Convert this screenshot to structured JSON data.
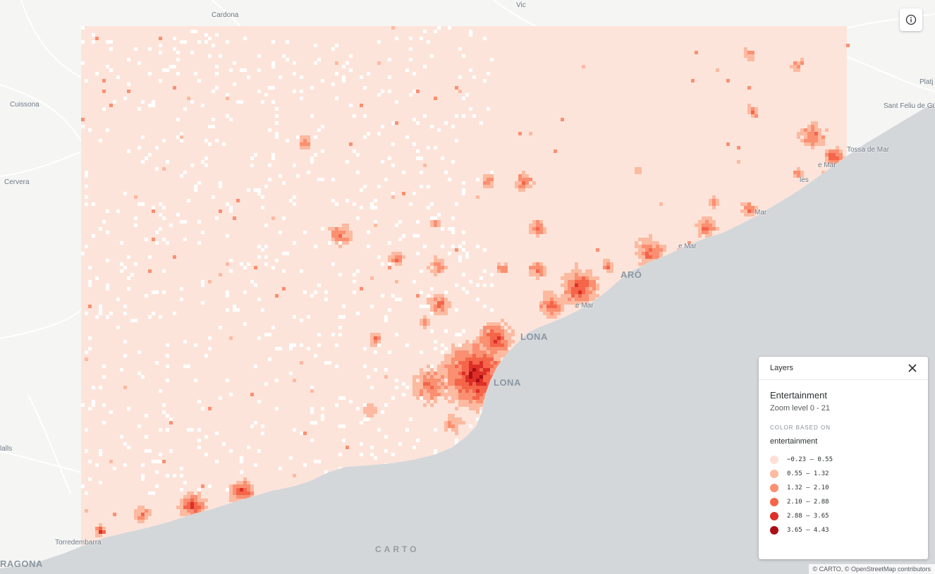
{
  "map": {
    "places": [
      {
        "name": "Cardona",
        "big": false
      },
      {
        "name": "Vic",
        "big": false
      },
      {
        "name": "Cuissona",
        "big": false
      },
      {
        "name": "Cervera",
        "big": false
      },
      {
        "name": "Sant Feliu de Gu",
        "big": false
      },
      {
        "name": "Platj",
        "big": false
      },
      {
        "name": "Tossa de Mar",
        "big": false
      },
      {
        "name": "lalls",
        "big": false
      },
      {
        "name": "Torredembarra",
        "big": false
      },
      {
        "name": "RAGONA",
        "big": true
      },
      {
        "name": "ARÓ",
        "big": true
      },
      {
        "name": "LONA",
        "big": true
      },
      {
        "name": "LONA",
        "big": true
      },
      {
        "name": "e Mar",
        "big": false
      },
      {
        "name": "e Mar",
        "big": false
      },
      {
        "name": "Mar",
        "big": false
      },
      {
        "name": "les",
        "big": false
      },
      {
        "name": "e Mar",
        "big": false
      }
    ],
    "colors": {
      "land": "#f5f5f4",
      "sea": "#d4d7da",
      "road": "#ffffff",
      "grid_base": "#fde4da",
      "grid_empty": "#ffffff"
    }
  },
  "info_button": {
    "icon": "info-icon"
  },
  "legend": {
    "header": "Layers",
    "close_icon": "close-icon",
    "layer_name": "Entertainment",
    "zoom_level": "Zoom level 0 - 21",
    "color_based_label": "COLOR BASED ON",
    "color_field": "entertainment",
    "items": [
      {
        "range": "−0.23 – 0.55",
        "color": "#fde0d5"
      },
      {
        "range": "0.55 – 1.32",
        "color": "#fcbaa1"
      },
      {
        "range": "1.32 – 2.10",
        "color": "#fb8f71"
      },
      {
        "range": "2.10 – 2.88",
        "color": "#f4654a"
      },
      {
        "range": "2.88 – 3.65",
        "color": "#dc2f27"
      },
      {
        "range": "3.65 – 4.43",
        "color": "#a90f15"
      }
    ]
  },
  "attribution": "© CARTO, © OpenStreetMap contributors",
  "carto_logo": "CARTO"
}
